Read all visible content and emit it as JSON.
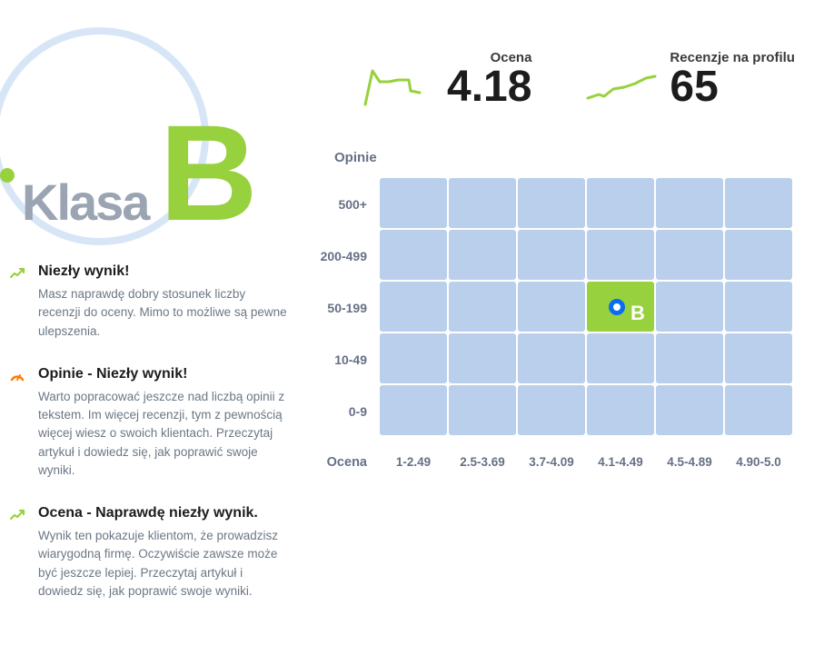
{
  "class_badge": {
    "label": "Klasa",
    "grade": "B",
    "grade_color": "#97d13d",
    "label_color": "#9aa4b2",
    "circle_color": "#d7e6f7"
  },
  "insights": [
    {
      "icon": "trend-up",
      "icon_color": "#97d13d",
      "title": "Niezły wynik!",
      "desc": "Masz naprawdę dobry stosunek liczby recenzji do oceny. Mimo to możliwe są pewne ulepszenia."
    },
    {
      "icon": "gauge",
      "icon_color": "#ff7a00",
      "title": "Opinie - Niezły wynik!",
      "desc": "Warto popracować jeszcze nad liczbą opinii z tekstem. Im więcej recenzji, tym z pewnością więcej wiesz o swoich klientach. Przeczytaj artykuł i dowiedz się, jak poprawić swoje wyniki."
    },
    {
      "icon": "trend-up",
      "icon_color": "#97d13d",
      "title": "Ocena - Naprawdę niezły wynik.",
      "desc": "Wynik ten pokazuje klientom, że prowadzisz wiarygodną firmę. Oczywiście zawsze może być jeszcze lepiej. Przeczytaj artykuł i dowiedz się, jak poprawić swoje wyniki."
    }
  ],
  "stats": {
    "rating": {
      "label": "Ocena",
      "value": "4.18",
      "spark_color": "#97d13d"
    },
    "reviews": {
      "label": "Recenzje na profilu",
      "value": "65",
      "spark_color": "#97d13d"
    }
  },
  "heatmap": {
    "y_title": "Opinie",
    "x_title": "Ocena",
    "y_labels": [
      "500+",
      "200-499",
      "50-199",
      "10-49",
      "0-9"
    ],
    "x_labels": [
      "1-2.49",
      "2.5-3.69",
      "3.7-4.09",
      "4.1-4.49",
      "4.5-4.89",
      "4.90-5.0"
    ],
    "cell_color": "#b9cfec",
    "active_color": "#97d13d",
    "active_row": 2,
    "active_col": 3,
    "marker_label": "B",
    "marker_ring_color": "#0b6cf0"
  }
}
